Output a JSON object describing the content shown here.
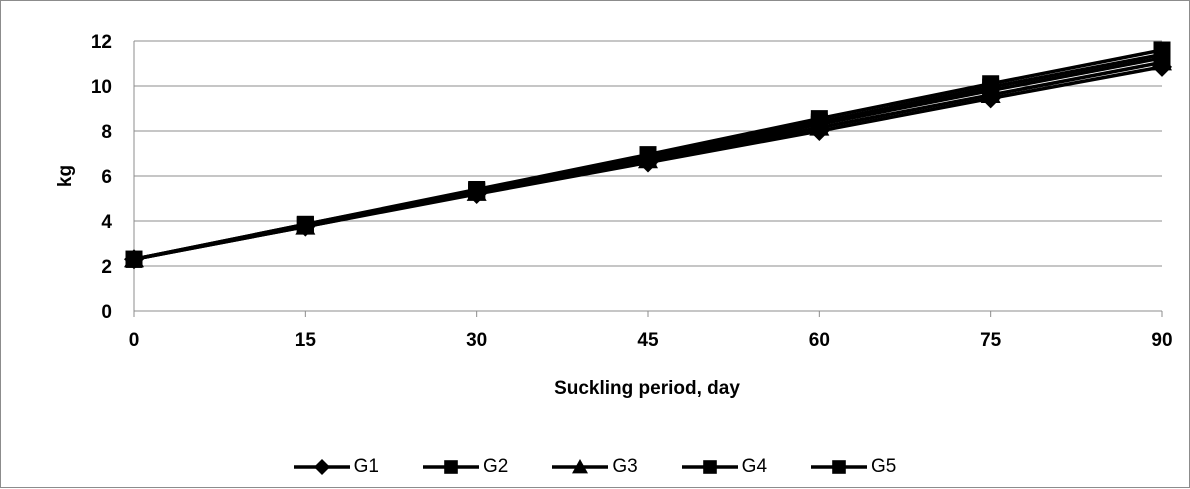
{
  "chart_data": {
    "type": "line",
    "title": "",
    "xlabel": "Suckling period, day",
    "ylabel": "kg",
    "x": [
      0,
      15,
      30,
      45,
      60,
      75,
      90
    ],
    "xlim": [
      0,
      90
    ],
    "ylim": [
      0,
      12
    ],
    "xticks": [
      "0",
      "15",
      "30",
      "45",
      "60",
      "75",
      "90"
    ],
    "yticks": [
      "0",
      "2",
      "4",
      "6",
      "8",
      "10",
      "12"
    ],
    "grid": "horizontal",
    "legend_position": "bottom",
    "line_color": "#000000",
    "series": [
      {
        "name": "G1",
        "marker": "diamond",
        "values": [
          2.3,
          3.75,
          5.2,
          6.6,
          8.0,
          9.45,
          10.85
        ]
      },
      {
        "name": "G2",
        "marker": "square",
        "values": [
          2.3,
          3.8,
          5.3,
          6.8,
          8.3,
          9.8,
          11.25
        ]
      },
      {
        "name": "G3",
        "marker": "triangle",
        "values": [
          2.3,
          3.75,
          5.25,
          6.7,
          8.15,
          9.6,
          11.05
        ]
      },
      {
        "name": "G4",
        "marker": "square",
        "values": [
          2.3,
          3.85,
          5.35,
          6.9,
          8.4,
          9.95,
          11.4
        ]
      },
      {
        "name": "G5",
        "marker": "square",
        "values": [
          2.3,
          3.85,
          5.4,
          6.95,
          8.55,
          10.1,
          11.6
        ]
      }
    ]
  }
}
